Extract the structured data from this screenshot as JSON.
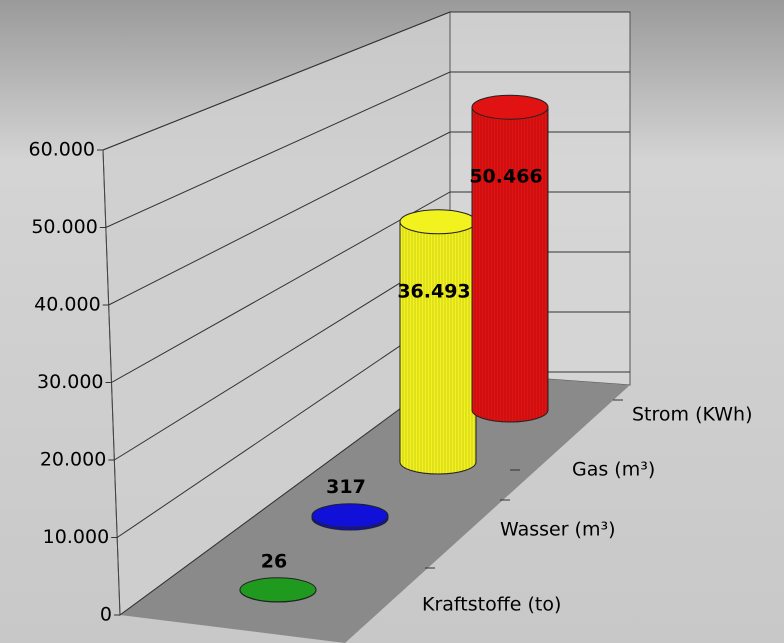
{
  "chart_data": {
    "type": "cylinder",
    "categories": [
      "Kraftstoffe (to)",
      "Wasser (m³)",
      "Gas (m³)",
      "Strom (KWh)"
    ],
    "values": [
      26,
      317,
      36493,
      50466
    ],
    "value_labels": [
      "26",
      "317",
      "36.493",
      "50.466"
    ],
    "colors": [
      "#1f9a1f",
      "#1010d8",
      "#f2f21e",
      "#e01212"
    ],
    "ylim": [
      0,
      60000
    ],
    "yticks": [
      0,
      {
        "value": 10000,
        "label": "10.000"
      },
      {
        "value": 20000,
        "label": "20.000"
      },
      {
        "value": 30000,
        "label": "30.000"
      },
      {
        "value": 40000,
        "label": "40.000"
      },
      {
        "value": 50000,
        "label": "50.000"
      },
      {
        "value": 60000,
        "label": "60.000"
      }
    ],
    "grid": true
  }
}
